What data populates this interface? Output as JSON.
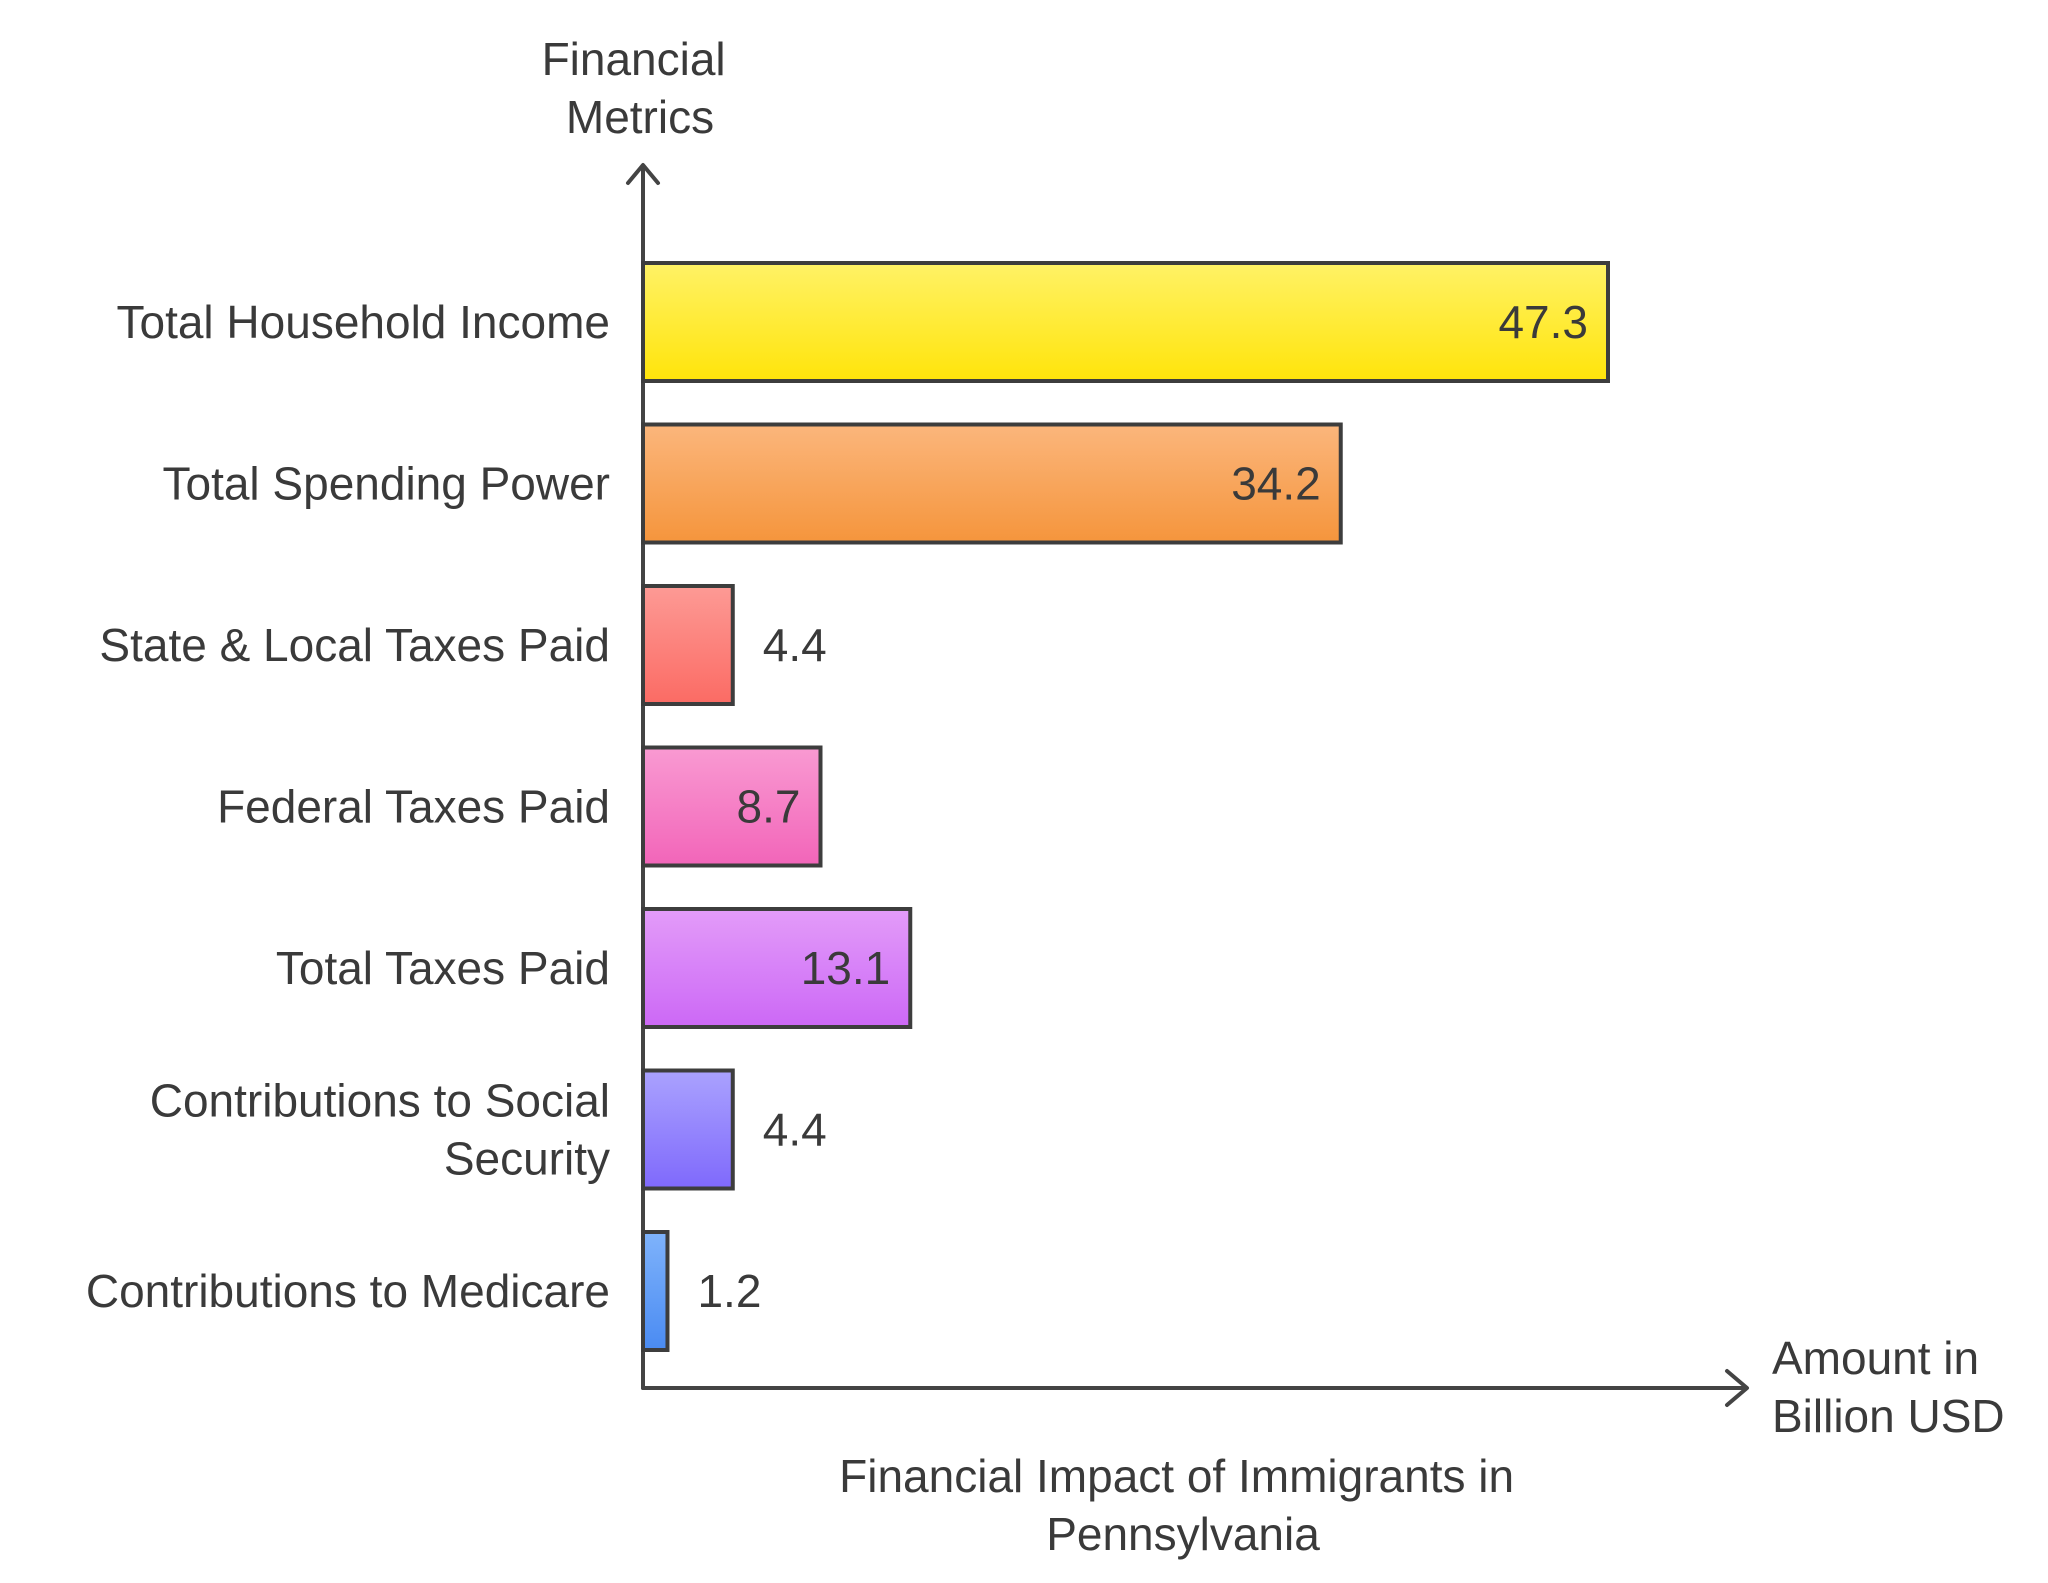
{
  "chart_data": {
    "type": "bar",
    "orientation": "horizontal",
    "title": "Financial Impact of Immigrants in Pennsylvania",
    "ylabel": "Financial Metrics",
    "xlabel": "Amount in Billion USD",
    "xlim": [
      0,
      50
    ],
    "grid": false,
    "categories": [
      "Total Household Income",
      "Total Spending Power",
      "State & Local Taxes Paid",
      "Federal Taxes Paid",
      "Total Taxes Paid",
      "Contributions to Social Security",
      "Contributions to Medicare"
    ],
    "values": [
      47.3,
      34.2,
      4.4,
      8.7,
      13.1,
      4.4,
      1.2
    ],
    "value_labels": [
      "47.3",
      "34.2",
      "4.4",
      "8.7",
      "13.1",
      "4.4",
      "1.2"
    ],
    "colors": [
      [
        "#fff266",
        "#ffe40a"
      ],
      [
        "#fbb67c",
        "#f5953c"
      ],
      [
        "#fd9a95",
        "#fb6b64"
      ],
      [
        "#f99ad2",
        "#f265b9"
      ],
      [
        "#e39cf9",
        "#cc68f6"
      ],
      [
        "#aaa2fe",
        "#7f69fc"
      ],
      [
        "#7fb3fb",
        "#4a8bf2"
      ]
    ]
  }
}
